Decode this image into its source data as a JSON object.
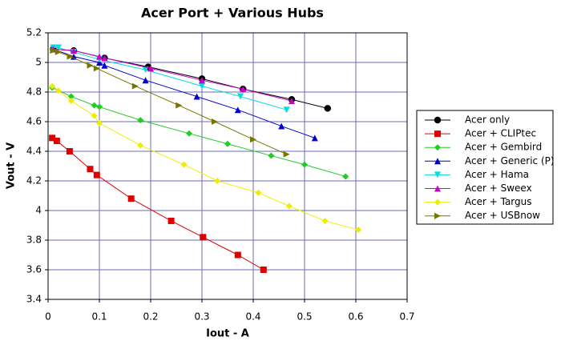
{
  "chart_data": {
    "type": "line",
    "title": "Acer Port + Various Hubs",
    "x_label": "Iout - A",
    "y_label": "Vout - V",
    "xlim": [
      0,
      0.7
    ],
    "xticks": [
      0,
      0.1,
      0.2,
      0.3,
      0.4,
      0.5,
      0.6,
      0.7
    ],
    "ylim": [
      3.4,
      5.2
    ],
    "yticks": [
      3.4,
      3.6,
      3.8,
      4,
      4.2,
      4.4,
      4.6,
      4.8,
      5,
      5.2
    ],
    "grid": true,
    "legend": "right",
    "series": [
      {
        "name": "Acer only",
        "color": "#000000",
        "marker": "circle",
        "x": [
          0.01,
          0.05,
          0.11,
          0.195,
          0.3,
          0.38,
          0.475,
          0.545
        ],
        "values": [
          5.09,
          5.08,
          5.03,
          4.97,
          4.89,
          4.82,
          4.75,
          4.69
        ]
      },
      {
        "name": "Acer + CLIPtec",
        "color": "#dd0000",
        "marker": "square",
        "x": [
          0.008,
          0.017,
          0.042,
          0.082,
          0.095,
          0.162,
          0.24,
          0.302,
          0.37,
          0.42
        ],
        "values": [
          4.49,
          4.47,
          4.4,
          4.28,
          4.24,
          4.08,
          3.93,
          3.82,
          3.7,
          3.6
        ]
      },
      {
        "name": "Acer + Gembird",
        "color": "#22cc22",
        "marker": "diamond",
        "x": [
          0.008,
          0.045,
          0.09,
          0.1,
          0.18,
          0.275,
          0.35,
          0.435,
          0.5,
          0.58
        ],
        "values": [
          4.83,
          4.77,
          4.71,
          4.7,
          4.61,
          4.52,
          4.45,
          4.37,
          4.31,
          4.23
        ]
      },
      {
        "name": "Acer + Generic (P)",
        "color": "#0000cc",
        "marker": "triangle-up",
        "x": [
          0.01,
          0.05,
          0.1,
          0.11,
          0.19,
          0.29,
          0.37,
          0.455,
          0.52
        ],
        "values": [
          5.09,
          5.04,
          5.0,
          4.98,
          4.88,
          4.77,
          4.68,
          4.57,
          4.49
        ]
      },
      {
        "name": "Acer + Hama",
        "color": "#00dddd",
        "marker": "triangle-down",
        "x": [
          0.01,
          0.02,
          0.05,
          0.1,
          0.19,
          0.3,
          0.375,
          0.465
        ],
        "values": [
          5.1,
          5.1,
          5.07,
          5.02,
          4.95,
          4.84,
          4.77,
          4.68
        ]
      },
      {
        "name": "Acer + Sweex",
        "color": "#cc00cc",
        "marker": "triangle-up",
        "x": [
          0.01,
          0.05,
          0.1,
          0.11,
          0.2,
          0.3,
          0.38,
          0.475
        ],
        "values": [
          5.09,
          5.08,
          5.04,
          5.03,
          4.96,
          4.88,
          4.82,
          4.74
        ]
      },
      {
        "name": "Acer + Targus",
        "color": "#eeee00",
        "marker": "diamond",
        "x": [
          0.008,
          0.02,
          0.045,
          0.09,
          0.1,
          0.18,
          0.265,
          0.33,
          0.41,
          0.47,
          0.54,
          0.605
        ],
        "values": [
          4.84,
          4.81,
          4.74,
          4.64,
          4.59,
          4.44,
          4.31,
          4.2,
          4.12,
          4.03,
          3.93,
          3.87
        ]
      },
      {
        "name": "Acer + USBnow",
        "color": "#777700",
        "marker": "triangle-right",
        "x": [
          0.01,
          0.02,
          0.043,
          0.082,
          0.095,
          0.17,
          0.255,
          0.325,
          0.4,
          0.465
        ],
        "values": [
          5.08,
          5.07,
          5.04,
          4.98,
          4.96,
          4.84,
          4.71,
          4.6,
          4.48,
          4.38
        ]
      }
    ]
  }
}
